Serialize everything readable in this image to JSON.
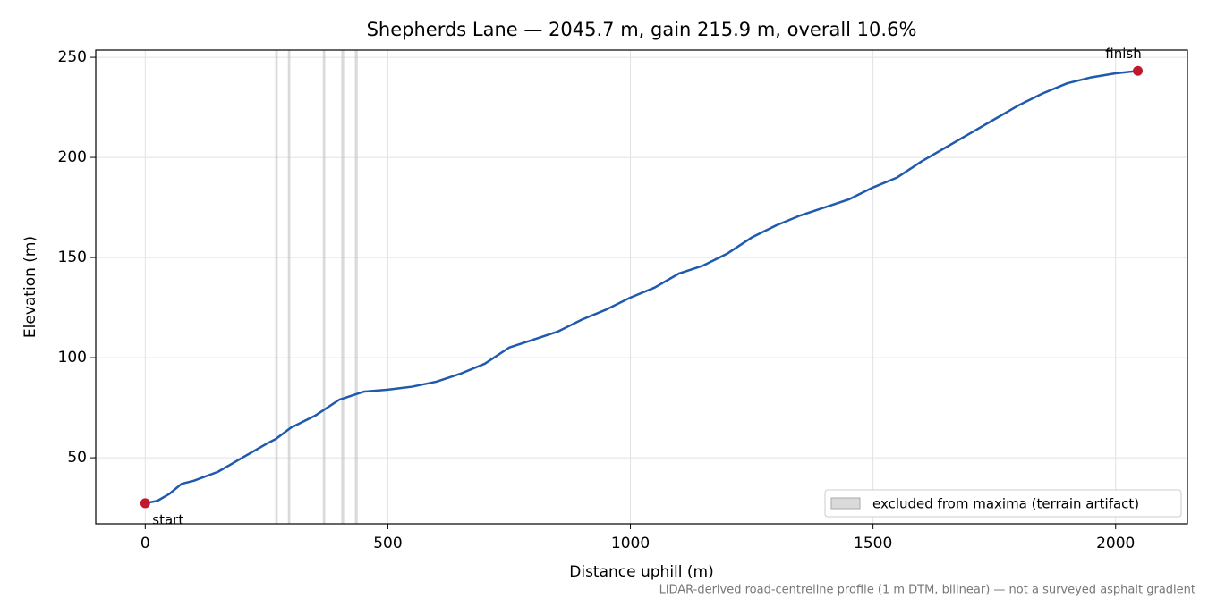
{
  "chart_data": {
    "type": "line",
    "title": "Shepherds Lane — 2045.7 m, gain 215.9 m, overall 10.6%",
    "xlabel": "Distance uphill (m)",
    "ylabel": "Elevation (m)",
    "footnote": "LiDAR-derived road-centreline profile (1 m DTM, bilinear) — not a surveyed asphalt gradient",
    "x": [
      0,
      25,
      50,
      75,
      100,
      150,
      200,
      250,
      270,
      300,
      350,
      400,
      450,
      500,
      550,
      600,
      650,
      700,
      750,
      800,
      850,
      900,
      950,
      1000,
      1050,
      1100,
      1150,
      1200,
      1250,
      1300,
      1350,
      1400,
      1450,
      1500,
      1550,
      1600,
      1650,
      1700,
      1750,
      1800,
      1850,
      1900,
      1950,
      2000,
      2045.7
    ],
    "series": [
      {
        "name": "elevation",
        "color": "#1f5aad",
        "values": [
          27.3,
          28.5,
          32,
          37,
          38.5,
          43,
          50,
          57,
          59.5,
          65,
          71,
          79,
          83,
          84,
          85.5,
          88,
          92,
          97,
          105,
          109,
          113,
          119,
          124,
          130,
          135,
          142,
          146,
          152,
          160,
          166,
          171,
          175,
          179,
          185,
          190,
          198,
          205,
          212,
          219,
          226,
          232,
          237,
          240,
          242,
          243.2
        ]
      }
    ],
    "endpoints": {
      "x": [
        0,
        2045.7
      ],
      "y": [
        27.3,
        243.2
      ],
      "labels": [
        "start",
        "finish"
      ],
      "color": "#c0192c"
    },
    "excluded_bands": {
      "name": "excluded from maxima (terrain artifact)",
      "color": "#bbbbbb",
      "ranges": [
        [
          268,
          273
        ],
        [
          294,
          299
        ],
        [
          366,
          371
        ],
        [
          404,
          410
        ],
        [
          432,
          438
        ]
      ]
    },
    "xlim": [
      -102,
      2148
    ],
    "ylim": [
      17,
      253.6
    ],
    "xticks": [
      0,
      500,
      1000,
      1500,
      2000
    ],
    "yticks": [
      50,
      100,
      150,
      200,
      250
    ],
    "grid": true,
    "legend": "lower right"
  }
}
